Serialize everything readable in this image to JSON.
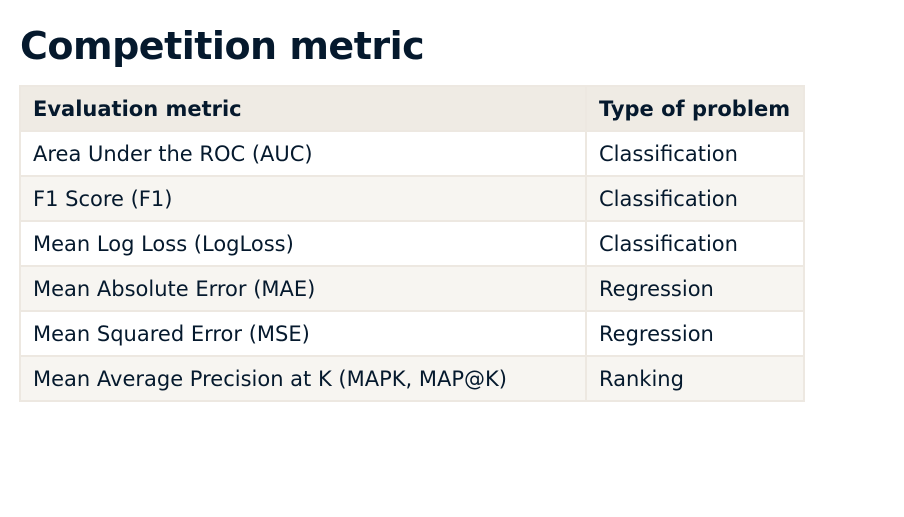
{
  "title": "Competition metric",
  "table": {
    "headers": [
      "Evaluation metric",
      "Type of problem"
    ],
    "rows": [
      [
        "Area Under the ROC (AUC)",
        "Classification"
      ],
      [
        "F1 Score (F1)",
        "Classification"
      ],
      [
        "Mean Log Loss (LogLoss)",
        "Classification"
      ],
      [
        "Mean Absolute Error (MAE)",
        "Regression"
      ],
      [
        "Mean Squared Error (MSE)",
        "Regression"
      ],
      [
        "Mean Average Precision at K (MAPK, MAP@K)",
        "Ranking"
      ]
    ]
  },
  "colors": {
    "text": "#05192d",
    "header_background": "#efebe4",
    "shaded_row_background": "#f7f5f1",
    "border": "#ede8e1"
  }
}
